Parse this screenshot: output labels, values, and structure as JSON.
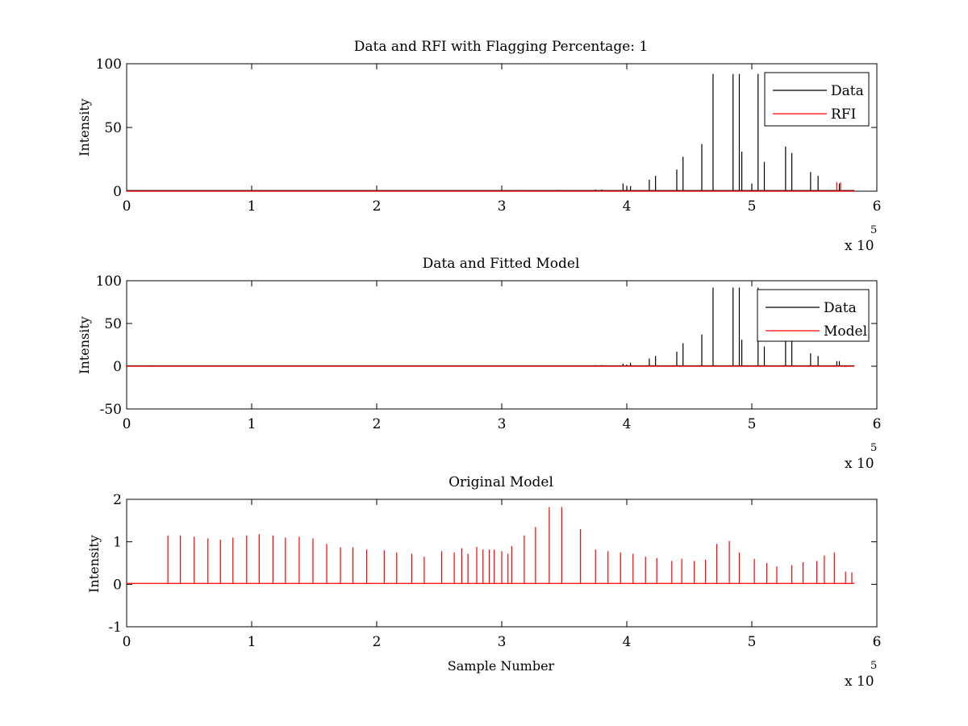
{
  "chart_data": [
    {
      "type": "line",
      "title": "Data and RFI with Flagging Percentage: 1",
      "xlabel": "",
      "ylabel": "Intensity",
      "xlim": [
        0,
        600000
      ],
      "ylim": [
        0,
        100
      ],
      "xticks": [
        "0",
        "1",
        "2",
        "3",
        "4",
        "5",
        "6"
      ],
      "yticks": [
        "0",
        "50",
        "100"
      ],
      "x_multiplier": "x 10",
      "x_multiplier_exp": "5",
      "legend": {
        "location": "top-right",
        "entries": [
          "Data",
          "RFI"
        ]
      },
      "series": [
        {
          "name": "Data",
          "color": "#000000",
          "baseline": 0.5,
          "spikes": [
            [
              314000,
              0.8
            ],
            [
              345000,
              1.0
            ],
            [
              358000,
              0.8
            ],
            [
              375000,
              1.2
            ],
            [
              380000,
              1.3
            ],
            [
              397000,
              6
            ],
            [
              400000,
              3
            ],
            [
              403000,
              4
            ],
            [
              418000,
              9
            ],
            [
              423000,
              12
            ],
            [
              440000,
              17
            ],
            [
              445000,
              27
            ],
            [
              460000,
              37
            ],
            [
              469000,
              92
            ],
            [
              485000,
              92
            ],
            [
              490000,
              92
            ],
            [
              492000,
              31
            ],
            [
              500000,
              6
            ],
            [
              505000,
              92
            ],
            [
              510000,
              23
            ],
            [
              527000,
              35
            ],
            [
              532000,
              30
            ],
            [
              547000,
              15
            ],
            [
              553000,
              12
            ],
            [
              570000,
              6
            ]
          ]
        },
        {
          "name": "RFI",
          "color": "#ff0000",
          "baseline": 0,
          "spikes": [
            [
              568000,
              7
            ],
            [
              571000,
              7
            ]
          ]
        }
      ]
    },
    {
      "type": "line",
      "title": "Data and Fitted Model",
      "xlabel": "",
      "ylabel": "Intensity",
      "xlim": [
        0,
        600000
      ],
      "ylim": [
        -50,
        100
      ],
      "xticks": [
        "0",
        "1",
        "2",
        "3",
        "4",
        "5",
        "6"
      ],
      "yticks": [
        "-50",
        "0",
        "50",
        "100"
      ],
      "x_multiplier": "x 10",
      "x_multiplier_exp": "5",
      "legend": {
        "location": "top-right",
        "entries": [
          "Data",
          "Model"
        ]
      },
      "series": [
        {
          "name": "Data",
          "color": "#000000",
          "baseline": 0.5,
          "spikes": [
            [
              375000,
              1.2
            ],
            [
              380000,
              1.3
            ],
            [
              397000,
              3
            ],
            [
              400000,
              2
            ],
            [
              403000,
              4
            ],
            [
              418000,
              9
            ],
            [
              423000,
              12
            ],
            [
              440000,
              17
            ],
            [
              445000,
              27
            ],
            [
              460000,
              37
            ],
            [
              469000,
              92
            ],
            [
              485000,
              92
            ],
            [
              490000,
              92
            ],
            [
              492000,
              31
            ],
            [
              505000,
              92
            ],
            [
              510000,
              23
            ],
            [
              527000,
              35
            ],
            [
              532000,
              30
            ],
            [
              547000,
              15
            ],
            [
              553000,
              12
            ],
            [
              568000,
              6
            ],
            [
              570000,
              6
            ]
          ]
        },
        {
          "name": "Model",
          "color": "#ff0000",
          "baseline": 0,
          "spikes": [
            [
              5000,
              0.6
            ],
            [
              20000,
              -0.8
            ],
            [
              575000,
              -1.0
            ]
          ]
        }
      ]
    },
    {
      "type": "line",
      "title": "Original Model",
      "xlabel": "Sample Number",
      "ylabel": "Intensity",
      "xlim": [
        0,
        600000
      ],
      "ylim": [
        -1,
        2
      ],
      "xticks": [
        "0",
        "1",
        "2",
        "3",
        "4",
        "5",
        "6"
      ],
      "yticks": [
        "-1",
        "0",
        "1",
        "2"
      ],
      "x_multiplier": "x 10",
      "x_multiplier_exp": "5",
      "series": [
        {
          "name": "Model",
          "color": "#ff0000",
          "baseline": 0.02,
          "spikes": [
            [
              33000,
              1.15
            ],
            [
              43000,
              1.15
            ],
            [
              54000,
              1.12
            ],
            [
              65000,
              1.08
            ],
            [
              75000,
              1.05
            ],
            [
              85000,
              1.1
            ],
            [
              96000,
              1.15
            ],
            [
              106000,
              1.18
            ],
            [
              117000,
              1.15
            ],
            [
              127000,
              1.1
            ],
            [
              138000,
              1.12
            ],
            [
              149000,
              1.08
            ],
            [
              160000,
              0.95
            ],
            [
              171000,
              0.87
            ],
            [
              181000,
              0.87
            ],
            [
              192000,
              0.82
            ],
            [
              206000,
              0.8
            ],
            [
              216000,
              0.75
            ],
            [
              228000,
              0.72
            ],
            [
              238000,
              0.65
            ],
            [
              252000,
              0.78
            ],
            [
              262000,
              0.75
            ],
            [
              268000,
              0.85
            ],
            [
              273000,
              0.72
            ],
            [
              280000,
              0.88
            ],
            [
              285000,
              0.82
            ],
            [
              290000,
              0.82
            ],
            [
              294000,
              0.82
            ],
            [
              300000,
              0.78
            ],
            [
              305000,
              0.72
            ],
            [
              308000,
              0.9
            ],
            [
              318000,
              1.15
            ],
            [
              327000,
              1.35
            ],
            [
              338000,
              1.82
            ],
            [
              348000,
              1.82
            ],
            [
              363000,
              1.3
            ],
            [
              375000,
              0.82
            ],
            [
              385000,
              0.78
            ],
            [
              395000,
              0.75
            ],
            [
              405000,
              0.72
            ],
            [
              415000,
              0.65
            ],
            [
              424000,
              0.62
            ],
            [
              436000,
              0.55
            ],
            [
              444000,
              0.6
            ],
            [
              454000,
              0.55
            ],
            [
              463000,
              0.58
            ],
            [
              472000,
              0.95
            ],
            [
              482000,
              1.02
            ],
            [
              490000,
              0.75
            ],
            [
              502000,
              0.6
            ],
            [
              512000,
              0.5
            ],
            [
              520000,
              0.42
            ],
            [
              532000,
              0.45
            ],
            [
              541000,
              0.52
            ],
            [
              552000,
              0.55
            ],
            [
              558000,
              0.68
            ],
            [
              566000,
              0.75
            ],
            [
              575000,
              0.3
            ],
            [
              580000,
              0.28
            ]
          ]
        }
      ]
    }
  ]
}
